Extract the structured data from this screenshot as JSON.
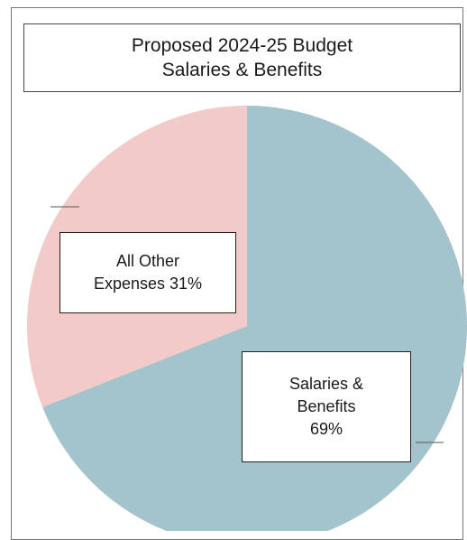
{
  "chart_data": {
    "type": "pie",
    "title": [
      "Proposed 2024-25 Budget",
      "Salaries & Benefits"
    ],
    "slices": [
      {
        "label": "Salaries & Benefits",
        "value": 69,
        "color": "#a3c4cc"
      },
      {
        "label": "All Other Expenses",
        "value": 31,
        "color": "#f2cac8"
      }
    ]
  },
  "labels": {
    "other_line1": "All Other",
    "other_line2": "Expenses 31%",
    "salaries_line1": "Salaries &",
    "salaries_line2": "Benefits",
    "salaries_line3": "69%"
  }
}
